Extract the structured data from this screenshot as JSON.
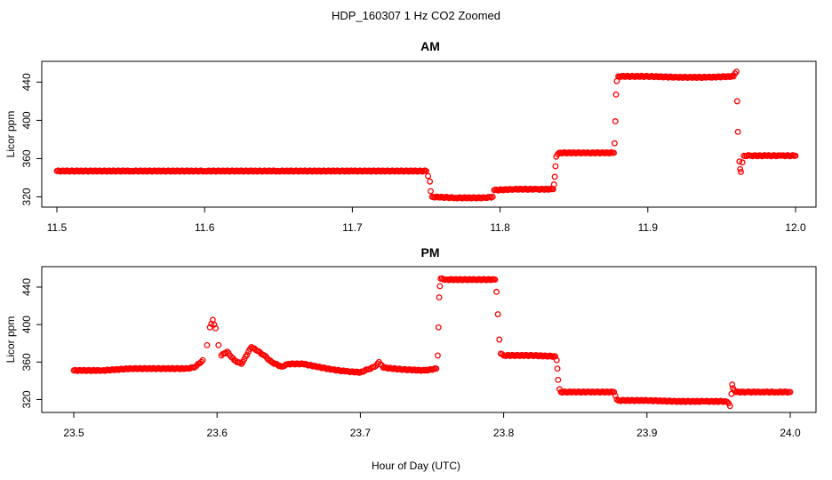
{
  "figure_title": "HDP_160307  1 Hz CO2 Zoomed",
  "xlabel": "Hour of Day (UTC)",
  "ylabel": "Licor ppm",
  "marker_color": "#ff0000",
  "chart_data": [
    {
      "type": "scatter",
      "title": "AM",
      "ylabel": "Licor ppm",
      "xlim": [
        11.5,
        12.0
      ],
      "ylim": [
        313,
        458
      ],
      "xticks": [
        "11.5",
        "11.6",
        "11.7",
        "11.8",
        "11.9",
        "12.0"
      ],
      "yticks": [
        "320",
        "360",
        "400",
        "440"
      ],
      "series": [
        {
          "points": [
            [
              11.5,
              347
            ],
            [
              11.55,
              347
            ],
            [
              11.6,
              347
            ],
            [
              11.65,
              347
            ],
            [
              11.7,
              347
            ],
            [
              11.75,
              347
            ],
            [
              11.7525,
              336
            ],
            [
              11.753,
              326
            ],
            [
              11.754,
              320
            ],
            [
              11.77,
              319
            ],
            [
              11.79,
              319
            ],
            [
              11.795,
              320
            ],
            [
              11.796,
              327
            ],
            [
              11.81,
              328
            ],
            [
              11.825,
              328
            ],
            [
              11.836,
              328
            ],
            [
              11.8365,
              333
            ],
            [
              11.837,
              341
            ],
            [
              11.8375,
              352
            ],
            [
              11.838,
              362
            ],
            [
              11.84,
              366
            ],
            [
              11.86,
              366
            ],
            [
              11.877,
              366
            ],
            [
              11.8775,
              376
            ],
            [
              11.878,
              399
            ],
            [
              11.8785,
              427
            ],
            [
              11.879,
              441
            ],
            [
              11.88,
              446
            ],
            [
              11.9,
              446
            ],
            [
              11.92,
              445
            ],
            [
              11.94,
              445
            ],
            [
              11.958,
              446
            ],
            [
              11.959,
              449
            ],
            [
              11.96,
              451
            ],
            [
              11.9605,
              420
            ],
            [
              11.961,
              388
            ],
            [
              11.962,
              357
            ],
            [
              11.9625,
              349
            ],
            [
              11.963,
              346
            ],
            [
              11.964,
              356
            ],
            [
              11.965,
              363
            ],
            [
              11.97,
              363
            ],
            [
              11.98,
              363
            ],
            [
              11.99,
              363
            ],
            [
              12.0,
              363
            ]
          ]
        }
      ]
    },
    {
      "type": "scatter",
      "title": "PM",
      "ylabel": "Licor ppm",
      "xlim": [
        23.5,
        24.0
      ],
      "ylim": [
        310,
        458
      ],
      "xticks": [
        "23.5",
        "23.6",
        "23.7",
        "23.8",
        "23.9",
        "24.0"
      ],
      "yticks": [
        "320",
        "360",
        "400",
        "440"
      ],
      "series": [
        {
          "points": [
            [
              23.5,
              351
            ],
            [
              23.52,
              351
            ],
            [
              23.54,
              353
            ],
            [
              23.56,
              353
            ],
            [
              23.58,
              353
            ],
            [
              23.585,
              355
            ],
            [
              23.59,
              362
            ],
            [
              23.593,
              378
            ],
            [
              23.595,
              397
            ],
            [
              23.597,
              405
            ],
            [
              23.599,
              396
            ],
            [
              23.601,
              378
            ],
            [
              23.603,
              367
            ],
            [
              23.607,
              371
            ],
            [
              23.612,
              362
            ],
            [
              23.617,
              358
            ],
            [
              23.62,
              366
            ],
            [
              23.624,
              376
            ],
            [
              23.628,
              372
            ],
            [
              23.633,
              367
            ],
            [
              23.638,
              360
            ],
            [
              23.645,
              355
            ],
            [
              23.65,
              358
            ],
            [
              23.66,
              358
            ],
            [
              23.68,
              352
            ],
            [
              23.69,
              350
            ],
            [
              23.7,
              349
            ],
            [
              23.705,
              352
            ],
            [
              23.71,
              355
            ],
            [
              23.713,
              360
            ],
            [
              23.716,
              354
            ],
            [
              23.73,
              352
            ],
            [
              23.745,
              351
            ],
            [
              23.753,
              353
            ],
            [
              23.754,
              367
            ],
            [
              23.7545,
              397
            ],
            [
              23.755,
              429
            ],
            [
              23.7555,
              441
            ],
            [
              23.756,
              449
            ],
            [
              23.76,
              448
            ],
            [
              23.78,
              448
            ],
            [
              23.794,
              448
            ],
            [
              23.795,
              435
            ],
            [
              23.796,
              411
            ],
            [
              23.797,
              384
            ],
            [
              23.798,
              369
            ],
            [
              23.8,
              367
            ],
            [
              23.82,
              367
            ],
            [
              23.836,
              366
            ],
            [
              23.837,
              362
            ],
            [
              23.8375,
              353
            ],
            [
              23.838,
              341
            ],
            [
              23.839,
              331
            ],
            [
              23.84,
              328
            ],
            [
              23.86,
              328
            ],
            [
              23.877,
              328
            ],
            [
              23.878,
              324
            ],
            [
              23.879,
              320
            ],
            [
              23.88,
              319
            ],
            [
              23.9,
              319
            ],
            [
              23.92,
              318
            ],
            [
              23.94,
              318
            ],
            [
              23.955,
              318
            ],
            [
              23.957,
              316
            ],
            [
              23.958,
              313
            ],
            [
              23.959,
              326
            ],
            [
              23.9595,
              336
            ],
            [
              23.96,
              332
            ],
            [
              23.962,
              328
            ],
            [
              23.97,
              328
            ],
            [
              23.98,
              328
            ],
            [
              23.99,
              328
            ],
            [
              24.0,
              328
            ]
          ]
        }
      ]
    }
  ]
}
